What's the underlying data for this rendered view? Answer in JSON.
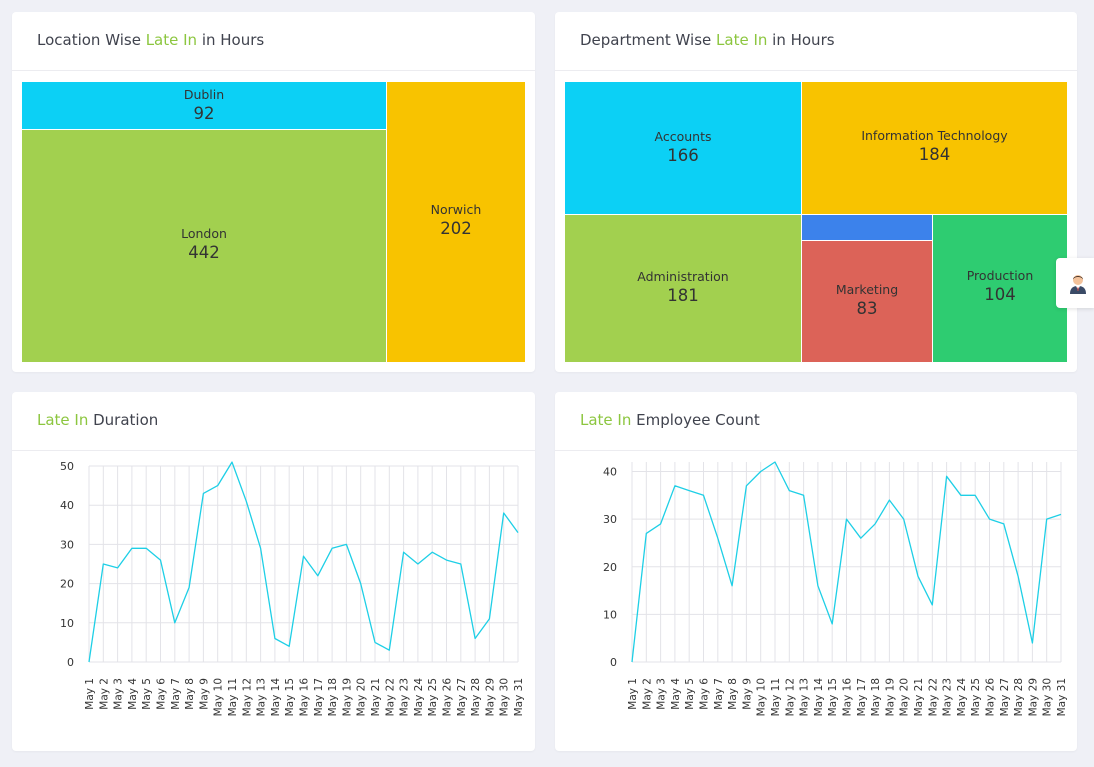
{
  "card_location": {
    "title_pre": "Location Wise ",
    "title_hl": "Late In",
    "title_post": " in Hours",
    "cells": [
      {
        "name": "Dublin",
        "value": "92"
      },
      {
        "name": "London",
        "value": "442"
      },
      {
        "name": "Norwich",
        "value": "202"
      }
    ]
  },
  "card_department": {
    "title_pre": "Department Wise ",
    "title_hl": "Late In",
    "title_post": " in Hours",
    "cells": [
      {
        "name": "Accounts",
        "value": "166"
      },
      {
        "name": "Information Technology",
        "value": "184"
      },
      {
        "name": "Administration",
        "value": "181"
      },
      {
        "name": "Marketing",
        "value": "83"
      },
      {
        "name": "Production",
        "value": "104"
      }
    ]
  },
  "card_duration": {
    "title_hl": "Late In",
    "title_post": " Duration"
  },
  "card_count": {
    "title_hl": "Late In",
    "title_post": " Employee Count"
  },
  "side_tab": {
    "icon": "user-avatar-icon"
  },
  "colors": {
    "highlight": "#8cc63f",
    "cyan": "#0cd0f5",
    "green": "#a2d04f",
    "yellow": "#f8c300",
    "blue": "#3c82eb",
    "red": "#dc6358",
    "emerald": "#2ecc71",
    "line": "#1ecfe6"
  },
  "chart_data": [
    {
      "type": "treemap",
      "title": "Location Wise Late In in Hours",
      "labels": [
        "Dublin",
        "London",
        "Norwich"
      ],
      "values": [
        92,
        442,
        202
      ]
    },
    {
      "type": "treemap",
      "title": "Department Wise Late In in Hours",
      "labels": [
        "Accounts",
        "Information Technology",
        "Administration",
        "Marketing",
        "Production",
        ""
      ],
      "values": [
        166,
        184,
        181,
        83,
        104,
        21
      ]
    },
    {
      "type": "line",
      "title": "Late In Duration",
      "ylim": [
        0,
        50
      ],
      "yticks": [
        0,
        10,
        20,
        30,
        40,
        50
      ],
      "x": [
        "May 1",
        "May 2",
        "May 3",
        "May 4",
        "May 5",
        "May 6",
        "May 7",
        "May 8",
        "May 9",
        "May 10",
        "May 11",
        "May 12",
        "May 13",
        "May 14",
        "May 15",
        "May 16",
        "May 17",
        "May 18",
        "May 19",
        "May 20",
        "May 21",
        "May 22",
        "May 23",
        "May 24",
        "May 25",
        "May 26",
        "May 27",
        "May 28",
        "May 29",
        "May 30",
        "May 31"
      ],
      "values": [
        0,
        25,
        24,
        29,
        29,
        26,
        10,
        19,
        43,
        45,
        51,
        41,
        29,
        6,
        4,
        27,
        22,
        29,
        30,
        20,
        5,
        3,
        28,
        25,
        28,
        26,
        25,
        6,
        11,
        38,
        33
      ]
    },
    {
      "type": "line",
      "title": "Late In Employee Count",
      "ylim": [
        0,
        42
      ],
      "yticks": [
        0,
        10,
        20,
        30,
        40
      ],
      "x": [
        "May 1",
        "May 2",
        "May 3",
        "May 4",
        "May 5",
        "May 6",
        "May 7",
        "May 8",
        "May 9",
        "May 10",
        "May 11",
        "May 12",
        "May 13",
        "May 14",
        "May 15",
        "May 16",
        "May 17",
        "May 18",
        "May 19",
        "May 20",
        "May 21",
        "May 22",
        "May 23",
        "May 24",
        "May 25",
        "May 26",
        "May 27",
        "May 28",
        "May 29",
        "May 30",
        "May 31"
      ],
      "values": [
        0,
        27,
        29,
        37,
        36,
        35,
        26,
        16,
        37,
        40,
        42,
        36,
        35,
        16,
        8,
        30,
        26,
        29,
        34,
        30,
        18,
        12,
        39,
        35,
        35,
        30,
        29,
        18,
        4,
        30,
        31
      ]
    }
  ]
}
